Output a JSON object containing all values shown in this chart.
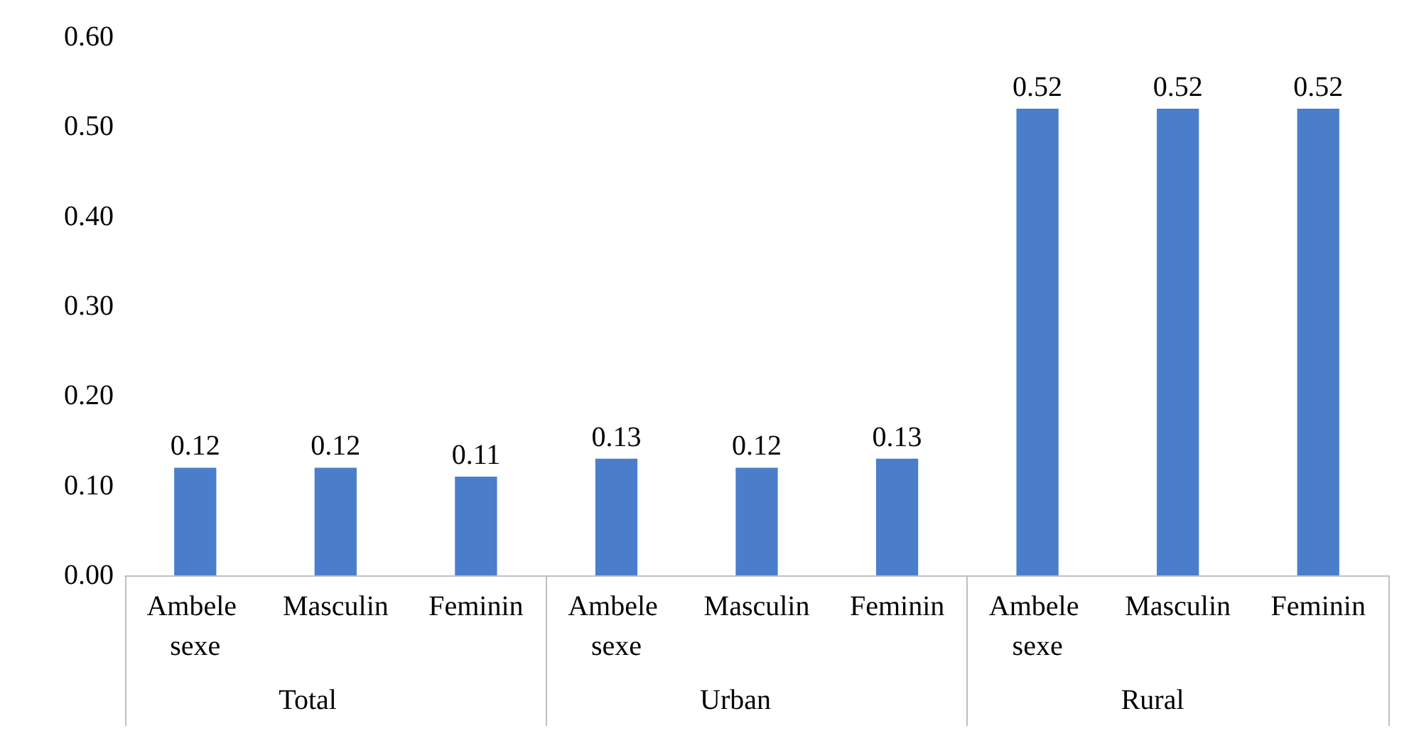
{
  "chart_data": {
    "type": "bar",
    "categories": [
      "Ambele sexe",
      "Masculin",
      "Feminin",
      "Ambele sexe",
      "Masculin",
      "Feminin",
      "Ambele sexe",
      "Masculin",
      "Feminin"
    ],
    "values": [
      0.12,
      0.12,
      0.11,
      0.13,
      0.12,
      0.13,
      0.52,
      0.52,
      0.52
    ],
    "color": "#4a7ecb",
    "ylim": [
      0,
      0.6
    ],
    "yticks": [
      {
        "value": 0,
        "label": "0.00"
      },
      {
        "value": 0.1,
        "label": "0.10"
      },
      {
        "value": 0.2,
        "label": "0.20"
      },
      {
        "value": 0.3,
        "label": "0.30"
      },
      {
        "value": 0.4,
        "label": "0.40"
      },
      {
        "value": 0.5,
        "label": "0.50"
      },
      {
        "value": 0.6,
        "label": "0.60"
      }
    ],
    "grid": false,
    "data_labels": true,
    "annotations": [
      "Total",
      "Urban",
      "Rural"
    ]
  }
}
